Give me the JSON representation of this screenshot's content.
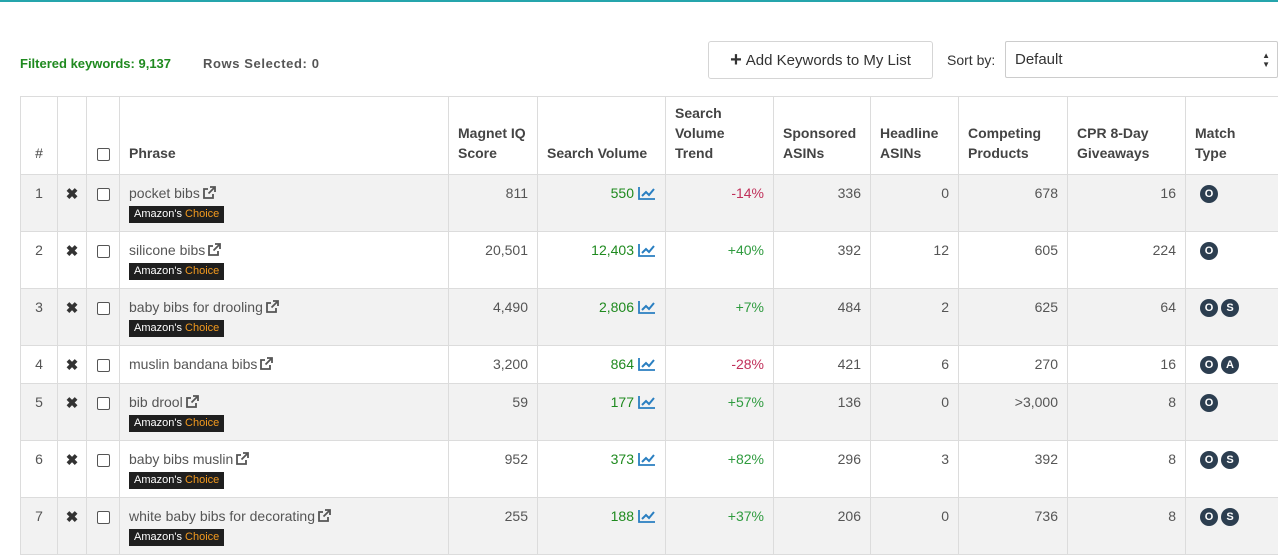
{
  "toolbar": {
    "filtered_label": "Filtered keywords: 9,137",
    "rows_selected_label": "Rows Selected: 0",
    "add_button_label": "Add Keywords to My List",
    "sort_label": "Sort by:",
    "sort_value": "Default"
  },
  "table": {
    "headers": {
      "index": "#",
      "phrase": "Phrase",
      "magnet_iq": [
        "Magnet IQ",
        "Score"
      ],
      "search_volume": "Search Volume",
      "search_volume_trend": [
        "Search",
        "Volume",
        "Trend"
      ],
      "sponsored_asins": [
        "Sponsored",
        "ASINs"
      ],
      "headline_asins": [
        "Headline",
        "ASINs"
      ],
      "competing_products": [
        "Competing",
        "Products"
      ],
      "cpr": [
        "CPR 8-Day",
        "Giveaways"
      ],
      "match_type": [
        "Match",
        "Type"
      ]
    },
    "badge": {
      "prefix": "Amazon's",
      "suffix": "Choice"
    },
    "remove_glyph": "✖",
    "rows": [
      {
        "idx": "1",
        "phrase": "pocket bibs",
        "amazons_choice": true,
        "magnet_iq": "811",
        "search_volume": "550",
        "trend": "-14%",
        "trend_dir": "neg",
        "sponsored": "336",
        "headline": "0",
        "competing": "678",
        "cpr": "16",
        "match": [
          "O"
        ]
      },
      {
        "idx": "2",
        "phrase": "silicone bibs",
        "amazons_choice": true,
        "magnet_iq": "20,501",
        "search_volume": "12,403",
        "trend": "+40%",
        "trend_dir": "pos",
        "sponsored": "392",
        "headline": "12",
        "competing": "605",
        "cpr": "224",
        "match": [
          "O"
        ]
      },
      {
        "idx": "3",
        "phrase": "baby bibs for drooling",
        "amazons_choice": true,
        "magnet_iq": "4,490",
        "search_volume": "2,806",
        "trend": "+7%",
        "trend_dir": "pos",
        "sponsored": "484",
        "headline": "2",
        "competing": "625",
        "cpr": "64",
        "match": [
          "O",
          "S"
        ]
      },
      {
        "idx": "4",
        "phrase": "muslin bandana bibs",
        "amazons_choice": false,
        "magnet_iq": "3,200",
        "search_volume": "864",
        "trend": "-28%",
        "trend_dir": "neg",
        "sponsored": "421",
        "headline": "6",
        "competing": "270",
        "cpr": "16",
        "match": [
          "O",
          "A"
        ]
      },
      {
        "idx": "5",
        "phrase": "bib drool",
        "amazons_choice": true,
        "magnet_iq": "59",
        "search_volume": "177",
        "trend": "+57%",
        "trend_dir": "pos",
        "sponsored": "136",
        "headline": "0",
        "competing": ">3,000",
        "cpr": "8",
        "match": [
          "O"
        ]
      },
      {
        "idx": "6",
        "phrase": "baby bibs muslin",
        "amazons_choice": true,
        "magnet_iq": "952",
        "search_volume": "373",
        "trend": "+82%",
        "trend_dir": "pos",
        "sponsored": "296",
        "headline": "3",
        "competing": "392",
        "cpr": "8",
        "match": [
          "O",
          "S"
        ]
      },
      {
        "idx": "7",
        "phrase": "white baby bibs for decorating",
        "amazons_choice": true,
        "magnet_iq": "255",
        "search_volume": "188",
        "trend": "+37%",
        "trend_dir": "pos",
        "sponsored": "206",
        "headline": "0",
        "competing": "736",
        "cpr": "8",
        "match": [
          "O",
          "S"
        ]
      }
    ]
  },
  "colors": {
    "accent_teal": "#25a5ac",
    "filtered_green": "#1f8a1f",
    "trend_negative": "#c0305a",
    "trend_positive": "#2f9b3f",
    "chart_icon_blue": "#2a7fc1",
    "badge_bg": "#1f1f1f",
    "badge_choice_orange": "#f39a1f",
    "match_badge_bg": "#2c3e50"
  },
  "icons": {
    "external_link": "external-link-icon",
    "trend_chart": "trend-chart-icon",
    "remove": "remove-x-icon",
    "plus": "plus-icon",
    "sort_arrows": "sort-arrows-icon"
  }
}
